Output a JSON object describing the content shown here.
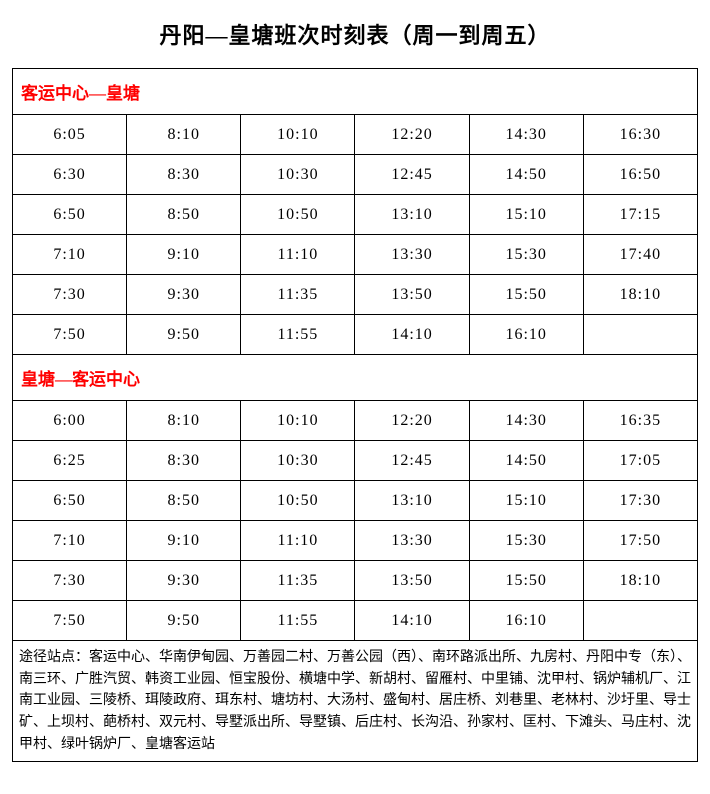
{
  "title": "丹阳—皇塘班次时刻表（周一到周五）",
  "section1": {
    "header": "客运中心—皇塘",
    "rows": [
      [
        "6:05",
        "8:10",
        "10:10",
        "12:20",
        "14:30",
        "16:30"
      ],
      [
        "6:30",
        "8:30",
        "10:30",
        "12:45",
        "14:50",
        "16:50"
      ],
      [
        "6:50",
        "8:50",
        "10:50",
        "13:10",
        "15:10",
        "17:15"
      ],
      [
        "7:10",
        "9:10",
        "11:10",
        "13:30",
        "15:30",
        "17:40"
      ],
      [
        "7:30",
        "9:30",
        "11:35",
        "13:50",
        "15:50",
        "18:10"
      ],
      [
        "7:50",
        "9:50",
        "11:55",
        "14:10",
        "16:10",
        ""
      ]
    ]
  },
  "section2": {
    "header": "皇塘—客运中心",
    "rows": [
      [
        "6:00",
        "8:10",
        "10:10",
        "12:20",
        "14:30",
        "16:35"
      ],
      [
        "6:25",
        "8:30",
        "10:30",
        "12:45",
        "14:50",
        "17:05"
      ],
      [
        "6:50",
        "8:50",
        "10:50",
        "13:10",
        "15:10",
        "17:30"
      ],
      [
        "7:10",
        "9:10",
        "11:10",
        "13:30",
        "15:30",
        "17:50"
      ],
      [
        "7:30",
        "9:30",
        "11:35",
        "13:50",
        "15:50",
        "18:10"
      ],
      [
        "7:50",
        "9:50",
        "11:55",
        "14:10",
        "16:10",
        ""
      ]
    ]
  },
  "footer": "途径站点：客运中心、华南伊甸园、万善园二村、万善公园（西）、南环路派出所、九房村、丹阳中专（东）、南三环、广胜汽贸、韩资工业园、恒宝股份、横塘中学、新胡村、留雁村、中里铺、沈甲村、锅炉辅机厂、江南工业园、三陵桥、珥陵政府、珥东村、塘坊村、大汤村、盛甸村、居庄桥、刘巷里、老林村、沙圩里、导士矿、上坝村、葩桥村、双元村、导墅派出所、导墅镇、后庄村、长沟沿、孙家村、匡村、下滩头、马庄村、沈甲村、绿叶锅炉厂、皇塘客运站",
  "colors": {
    "border": "#000000",
    "text": "#000000",
    "header_text": "#ff0000",
    "background": "#ffffff"
  }
}
